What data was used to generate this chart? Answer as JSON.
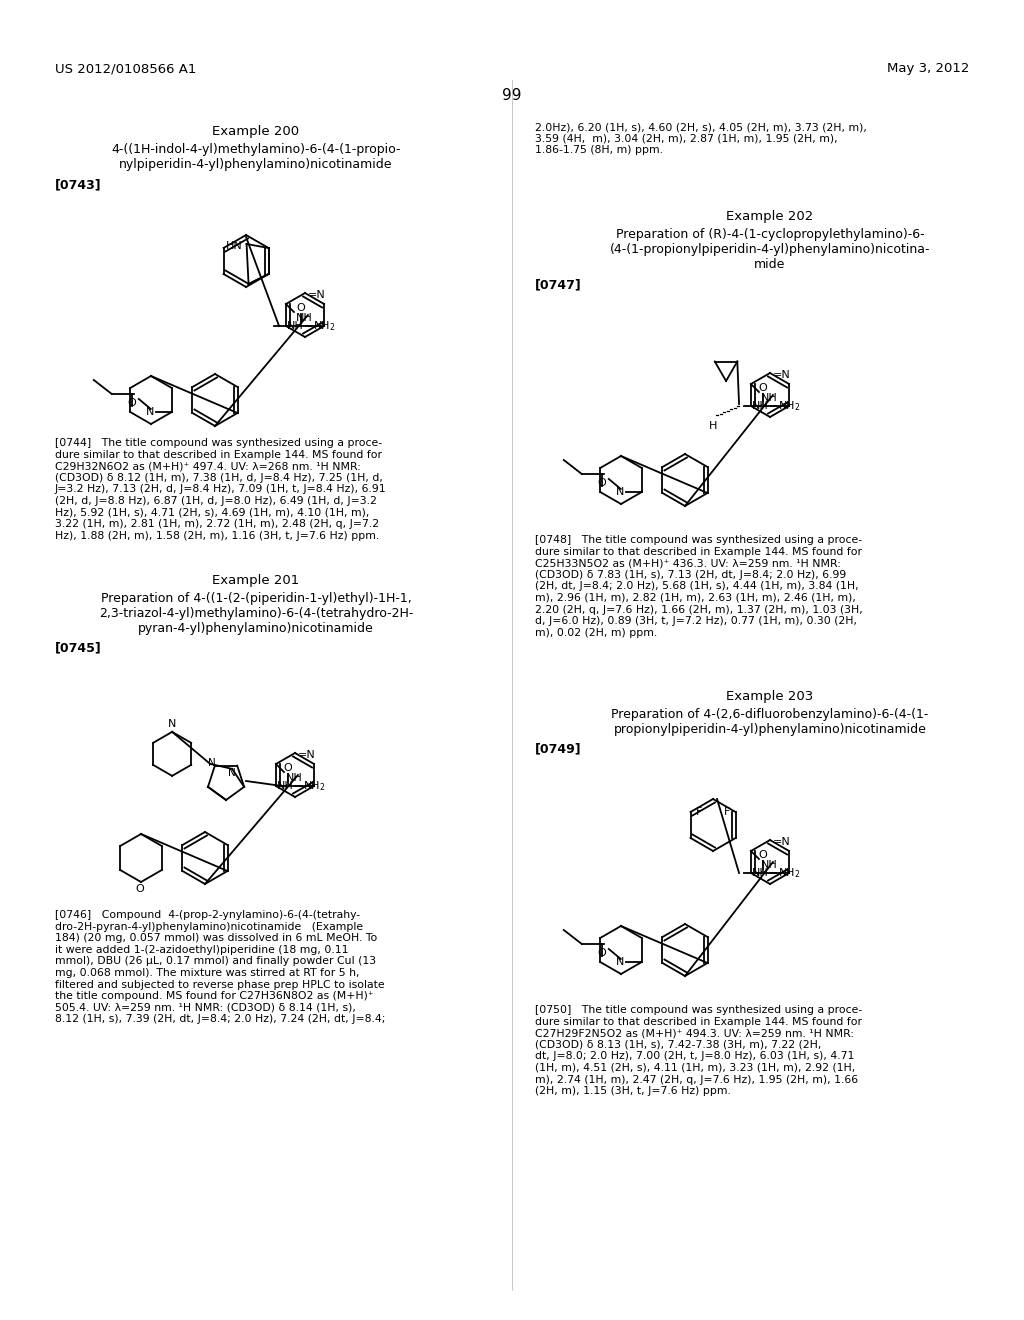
{
  "page_number": "99",
  "header_left": "US 2012/0108566 A1",
  "header_right": "May 3, 2012",
  "background_color": "#ffffff",
  "ex200_title": "Example 200",
  "ex200_sub1": "4-((1H-indol-4-yl)methylamino)-6-(4-(1-propio-",
  "ex200_sub2": "nylpiperidin-4-yl)phenylamino)nicotinamide",
  "ex200_tag": "[0743]",
  "ex200_text": "[0744]   The title compound was synthesized using a proce-\ndure similar to that described in Example 144. MS found for\nC29H32N6O2 as (M+H)⁺ 497.4. UV: λ=268 nm. ¹H NMR:\n(CD3OD) δ 8.12 (1H, m), 7.38 (1H, d, J=8.4 Hz), 7.25 (1H, d,\nJ=3.2 Hz), 7.13 (2H, d, J=8.4 Hz), 7.09 (1H, t, J=8.4 Hz), 6.91\n(2H, d, J=8.8 Hz), 6.87 (1H, d, J=8.0 Hz), 6.49 (1H, d, J=3.2\nHz), 5.92 (1H, s), 4.71 (2H, s), 4.69 (1H, m), 4.10 (1H, m),\n3.22 (1H, m), 2.81 (1H, m), 2.72 (1H, m), 2.48 (2H, q, J=7.2\nHz), 1.88 (2H, m), 1.58 (2H, m), 1.16 (3H, t, J=7.6 Hz) ppm.",
  "ex201_title": "Example 201",
  "ex201_sub1": "Preparation of 4-((1-(2-(piperidin-1-yl)ethyl)-1H-1,",
  "ex201_sub2": "2,3-triazol-4-yl)methylamino)-6-(4-(tetrahydro-2H-",
  "ex201_sub3": "pyran-4-yl)phenylamino)nicotinamide",
  "ex201_tag": "[0745]",
  "ex201_text": "[0746]   Compound  4-(prop-2-ynylamino)-6-(4-(tetrahy-\ndro-2H-pyran-4-yl)phenylamino)nicotinamide   (Example\n184) (20 mg, 0.057 mmol) was dissolved in 6 mL MeOH. To\nit were added 1-(2-azidoethyl)piperidine (18 mg, 0.11\nmmol), DBU (26 μL, 0.17 mmol) and finally powder CuI (13\nmg, 0.068 mmol). The mixture was stirred at RT for 5 h,\nfiltered and subjected to reverse phase prep HPLC to isolate\nthe title compound. MS found for C27H36N8O2 as (M+H)⁺\n505.4. UV: λ=259 nm. ¹H NMR: (CD3OD) δ 8.14 (1H, s),\n8.12 (1H, s), 7.39 (2H, dt, J=8.4; 2.0 Hz), 7.24 (2H, dt, J=8.4;",
  "right_cont": "2.0Hz), 6.20 (1H, s), 4.60 (2H, s), 4.05 (2H, m), 3.73 (2H, m),\n3.59 (4H,  m), 3.04 (2H, m), 2.87 (1H, m), 1.95 (2H, m),\n1.86-1.75 (8H, m) ppm.",
  "ex202_title": "Example 202",
  "ex202_sub1": "Preparation of (R)-4-(1-cyclopropylethylamino)-6-",
  "ex202_sub2": "(4-(1-propionylpiperidin-4-yl)phenylamino)nicotina-",
  "ex202_sub3": "mide",
  "ex202_tag": "[0747]",
  "ex202_text": "[0748]   The title compound was synthesized using a proce-\ndure similar to that described in Example 144. MS found for\nC25H33N5O2 as (M+H)⁺ 436.3. UV: λ=259 nm. ¹H NMR:\n(CD3OD) δ 7.83 (1H, s), 7.13 (2H, dt, J=8.4; 2.0 Hz), 6.99\n(2H, dt, J=8.4; 2.0 Hz), 5.68 (1H, s), 4.44 (1H, m), 3.84 (1H,\nm), 2.96 (1H, m), 2.82 (1H, m), 2.63 (1H, m), 2.46 (1H, m),\n2.20 (2H, q, J=7.6 Hz), 1.66 (2H, m), 1.37 (2H, m), 1.03 (3H,\nd, J=6.0 Hz), 0.89 (3H, t, J=7.2 Hz), 0.77 (1H, m), 0.30 (2H,\nm), 0.02 (2H, m) ppm.",
  "ex203_title": "Example 203",
  "ex203_sub1": "Preparation of 4-(2,6-difluorobenzylamino)-6-(4-(1-",
  "ex203_sub2": "propionylpiperidin-4-yl)phenylamino)nicotinamide",
  "ex203_tag": "[0749]",
  "ex203_text": "[0750]   The title compound was synthesized using a proce-\ndure similar to that described in Example 144. MS found for\nC27H29F2N5O2 as (M+H)⁺ 494.3. UV: λ=259 nm. ¹H NMR:\n(CD3OD) δ 8.13 (1H, s), 7.42-7.38 (3H, m), 7.22 (2H,\ndt, J=8.0; 2.0 Hz), 7.00 (2H, t, J=8.0 Hz), 6.03 (1H, s), 4.71\n(1H, m), 4.51 (2H, s), 4.11 (1H, m), 3.23 (1H, m), 2.92 (1H,\nm), 2.74 (1H, m), 2.47 (2H, q, J=7.6 Hz), 1.95 (2H, m), 1.66\n(2H, m), 1.15 (3H, t, J=7.6 Hz) ppm."
}
